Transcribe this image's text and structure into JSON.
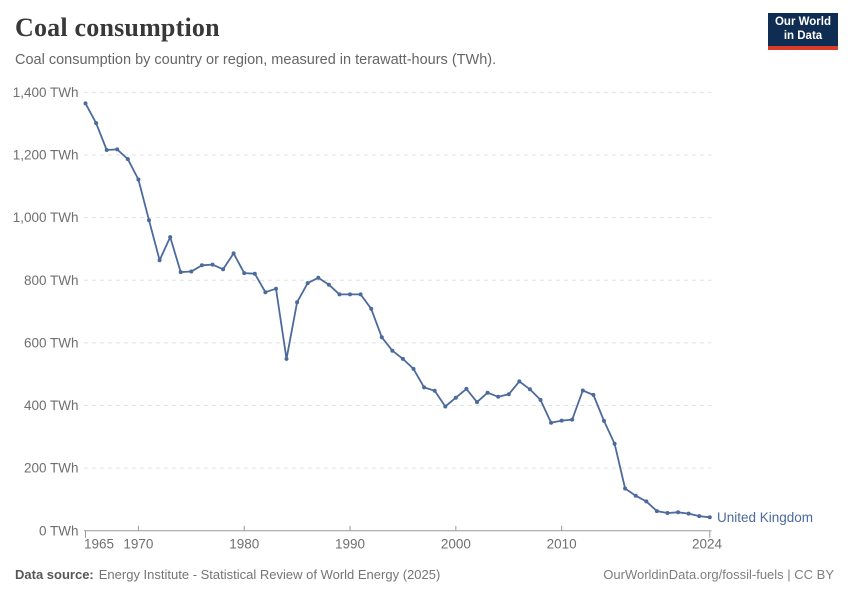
{
  "header": {
    "title": "Coal consumption",
    "subtitle": "Coal consumption by country or region, measured in terawatt-hours (TWh)."
  },
  "logo": {
    "line1": "Our World",
    "line2": "in Data"
  },
  "chart_data": {
    "type": "line",
    "title": "Coal consumption",
    "unit": "TWh",
    "series_label": "United Kingdom",
    "x": [
      1965,
      1966,
      1967,
      1968,
      1969,
      1970,
      1971,
      1972,
      1973,
      1974,
      1975,
      1976,
      1977,
      1978,
      1979,
      1980,
      1981,
      1982,
      1983,
      1984,
      1985,
      1986,
      1987,
      1988,
      1989,
      1990,
      1991,
      1992,
      1993,
      1994,
      1995,
      1996,
      1997,
      1998,
      1999,
      2000,
      2001,
      2002,
      2003,
      2004,
      2005,
      2006,
      2007,
      2008,
      2009,
      2010,
      2011,
      2012,
      2013,
      2014,
      2015,
      2016,
      2017,
      2018,
      2019,
      2020,
      2021,
      2022,
      2023,
      2024
    ],
    "series": [
      {
        "name": "United Kingdom",
        "values": [
          1365,
          1302,
          1216,
          1218,
          1187,
          1122,
          992,
          864,
          938,
          826,
          828,
          848,
          850,
          835,
          886,
          823,
          821,
          762,
          773,
          549,
          730,
          791,
          808,
          786,
          755,
          755,
          755,
          709,
          618,
          575,
          549,
          517,
          458,
          447,
          397,
          425,
          453,
          411,
          441,
          428,
          436,
          477,
          452,
          418,
          345,
          352,
          355,
          448,
          434,
          351,
          278,
          135,
          112,
          94,
          63,
          57,
          59,
          55,
          47,
          43
        ]
      }
    ],
    "xlim": [
      1965,
      2024
    ],
    "ylim": [
      0,
      1400
    ],
    "yticks": [
      {
        "value": 0,
        "label": "0 TWh"
      },
      {
        "value": 200,
        "label": "200 TWh"
      },
      {
        "value": 400,
        "label": "400 TWh"
      },
      {
        "value": 600,
        "label": "600 TWh"
      },
      {
        "value": 800,
        "label": "800 TWh"
      },
      {
        "value": 1000,
        "label": "1,000 TWh"
      },
      {
        "value": 1200,
        "label": "1,200 TWh"
      },
      {
        "value": 1400,
        "label": "1,400 TWh"
      }
    ],
    "xticks": [
      {
        "value": 1965,
        "label": "1965"
      },
      {
        "value": 1970,
        "label": "1970"
      },
      {
        "value": 1980,
        "label": "1980"
      },
      {
        "value": 1990,
        "label": "1990"
      },
      {
        "value": 2000,
        "label": "2000"
      },
      {
        "value": 2010,
        "label": "2010"
      },
      {
        "value": 2024,
        "label": "2024"
      }
    ],
    "grid": "dashed",
    "legend_position": "end-of-line",
    "colors": {
      "line": "#4c6a9c",
      "grid": "#e2e2e2",
      "axis": "#9a9a9a"
    }
  },
  "footer": {
    "datasource_label": "Data source:",
    "datasource_value": "Energy Institute - Statistical Review of World Energy (2025)",
    "right": "OurWorldinData.org/fossil-fuels | CC BY"
  }
}
